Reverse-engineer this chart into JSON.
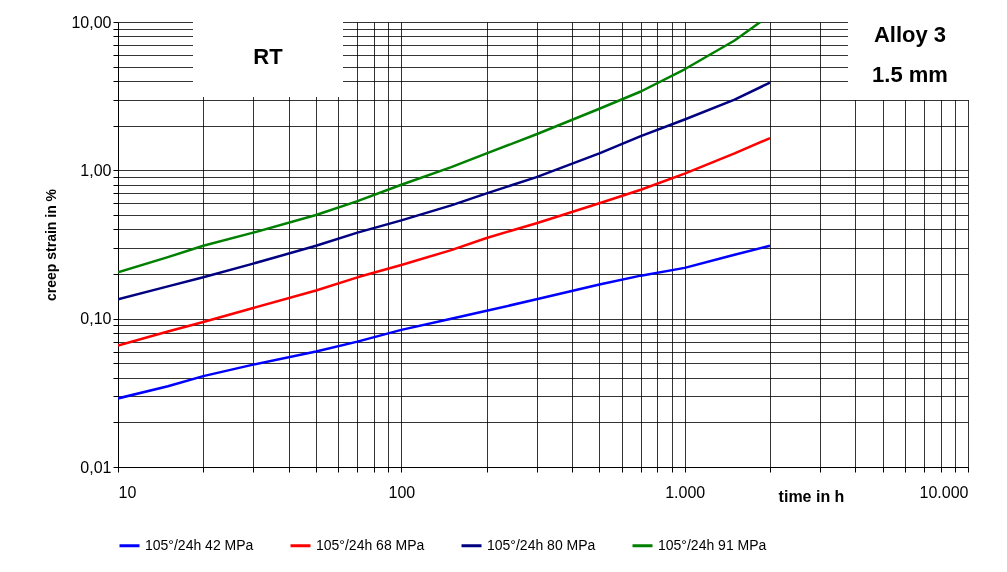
{
  "chart_data": {
    "type": "line",
    "xlabel": "time in h",
    "ylabel": "creep strain in %",
    "log": "xy",
    "grid": true,
    "legend": "bottom",
    "line_style": "solid",
    "marker": "none",
    "annotations": [
      "RT",
      "Alloy 3",
      "1.5 mm"
    ],
    "xlim": [
      10,
      10000
    ],
    "ylim": [
      0.01,
      10
    ],
    "xticks": [
      {
        "value": 10,
        "label": "10"
      },
      {
        "value": 20,
        "label": null
      },
      {
        "value": 30,
        "label": null
      },
      {
        "value": 40,
        "label": null
      },
      {
        "value": 50,
        "label": null
      },
      {
        "value": 60,
        "label": null
      },
      {
        "value": 70,
        "label": null
      },
      {
        "value": 80,
        "label": null
      },
      {
        "value": 90,
        "label": null
      },
      {
        "value": 100,
        "label": "100"
      },
      {
        "value": 200,
        "label": null
      },
      {
        "value": 300,
        "label": null
      },
      {
        "value": 400,
        "label": null
      },
      {
        "value": 500,
        "label": null
      },
      {
        "value": 600,
        "label": null
      },
      {
        "value": 700,
        "label": null
      },
      {
        "value": 800,
        "label": null
      },
      {
        "value": 900,
        "label": null
      },
      {
        "value": 1000,
        "label": "1.000"
      },
      {
        "value": 2000,
        "label": null
      },
      {
        "value": 3000,
        "label": null
      },
      {
        "value": 4000,
        "label": null
      },
      {
        "value": 5000,
        "label": null
      },
      {
        "value": 6000,
        "label": null
      },
      {
        "value": 7000,
        "label": null
      },
      {
        "value": 8000,
        "label": null
      },
      {
        "value": 9000,
        "label": null
      },
      {
        "value": 10000,
        "label": "10.000"
      }
    ],
    "yticks": [
      {
        "value": 0.01,
        "label": "0,01"
      },
      {
        "value": 0.02,
        "label": null
      },
      {
        "value": 0.03,
        "label": null
      },
      {
        "value": 0.04,
        "label": null
      },
      {
        "value": 0.05,
        "label": null
      },
      {
        "value": 0.06,
        "label": null
      },
      {
        "value": 0.07,
        "label": null
      },
      {
        "value": 0.08,
        "label": null
      },
      {
        "value": 0.09,
        "label": null
      },
      {
        "value": 0.1,
        "label": "0,10"
      },
      {
        "value": 0.2,
        "label": null
      },
      {
        "value": 0.3,
        "label": null
      },
      {
        "value": 0.4,
        "label": null
      },
      {
        "value": 0.5,
        "label": null
      },
      {
        "value": 0.6,
        "label": null
      },
      {
        "value": 0.7,
        "label": null
      },
      {
        "value": 0.8,
        "label": null
      },
      {
        "value": 0.9,
        "label": null
      },
      {
        "value": 1,
        "label": "1,00"
      },
      {
        "value": 2,
        "label": null
      },
      {
        "value": 3,
        "label": null
      },
      {
        "value": 4,
        "label": null
      },
      {
        "value": 5,
        "label": null
      },
      {
        "value": 6,
        "label": null
      },
      {
        "value": 7,
        "label": null
      },
      {
        "value": 8,
        "label": null
      },
      {
        "value": 9,
        "label": null
      },
      {
        "value": 10,
        "label": "10,00"
      }
    ],
    "x": [
      10,
      15,
      20,
      30,
      50,
      70,
      100,
      150,
      200,
      300,
      500,
      700,
      1000,
      1500,
      2000
    ],
    "series": [
      {
        "name": "105°/24h 42 MPa",
        "color": "#0000ff",
        "values": [
          0.029,
          0.035,
          0.041,
          0.049,
          0.06,
          0.07,
          0.084,
          0.1,
          0.113,
          0.135,
          0.17,
          0.195,
          0.22,
          0.27,
          0.31
        ]
      },
      {
        "name": "105°/24h 68 MPa",
        "color": "#ff0000",
        "values": [
          0.066,
          0.082,
          0.095,
          0.118,
          0.155,
          0.19,
          0.23,
          0.29,
          0.35,
          0.44,
          0.6,
          0.74,
          0.95,
          1.3,
          1.65
        ]
      },
      {
        "name": "105°/24h 80 MPa",
        "color": "#000080",
        "values": [
          0.135,
          0.165,
          0.19,
          0.235,
          0.31,
          0.38,
          0.46,
          0.58,
          0.7,
          0.9,
          1.3,
          1.7,
          2.2,
          3,
          3.9
        ]
      },
      {
        "name": "105°/24h 91 MPa",
        "color": "#008000",
        "x": [
          10,
          15,
          20,
          30,
          50,
          70,
          100,
          150,
          200,
          300,
          500,
          700,
          1000,
          1500,
          1850
        ],
        "values": [
          0.205,
          0.26,
          0.31,
          0.38,
          0.5,
          0.62,
          0.8,
          1.05,
          1.3,
          1.75,
          2.6,
          3.4,
          4.8,
          7.5,
          10
        ]
      }
    ]
  }
}
